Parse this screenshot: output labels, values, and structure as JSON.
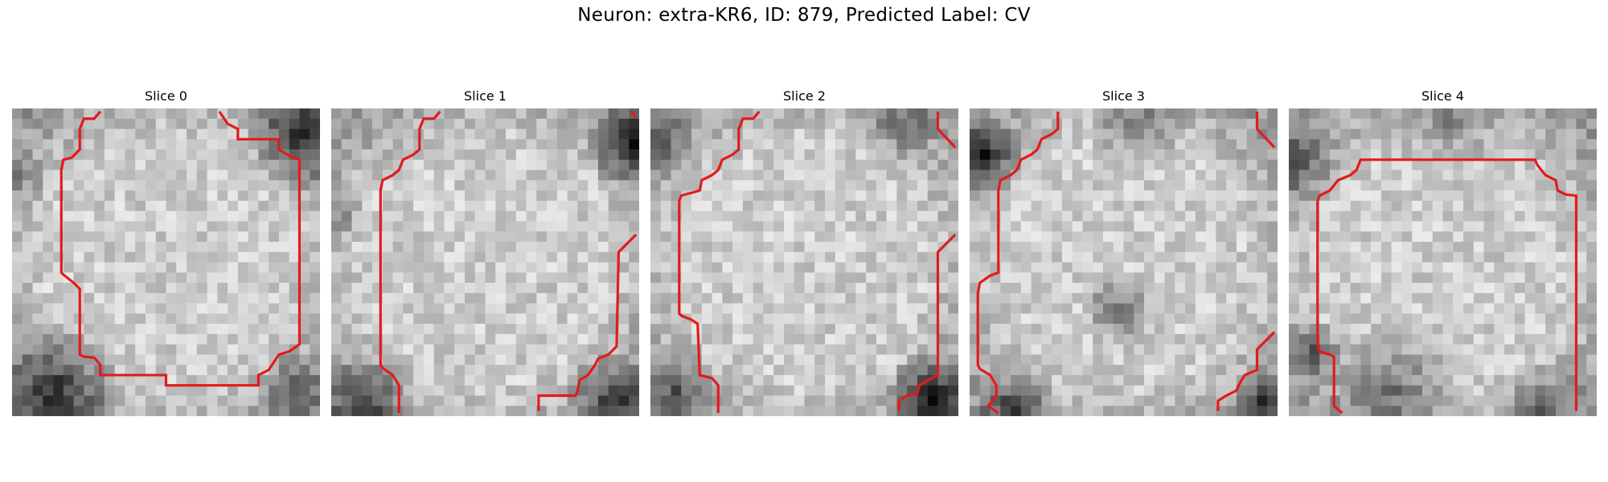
{
  "figure": {
    "title": "Neuron: extra-KR6, ID: 879, Predicted Label: CV"
  },
  "panels": [
    {
      "title": "Slice 0"
    },
    {
      "title": "Slice 1"
    },
    {
      "title": "Slice 2"
    },
    {
      "title": "Slice 3"
    },
    {
      "title": "Slice 4"
    }
  ],
  "colors": {
    "contour": "#e31a1c",
    "background": "#ffffff"
  }
}
